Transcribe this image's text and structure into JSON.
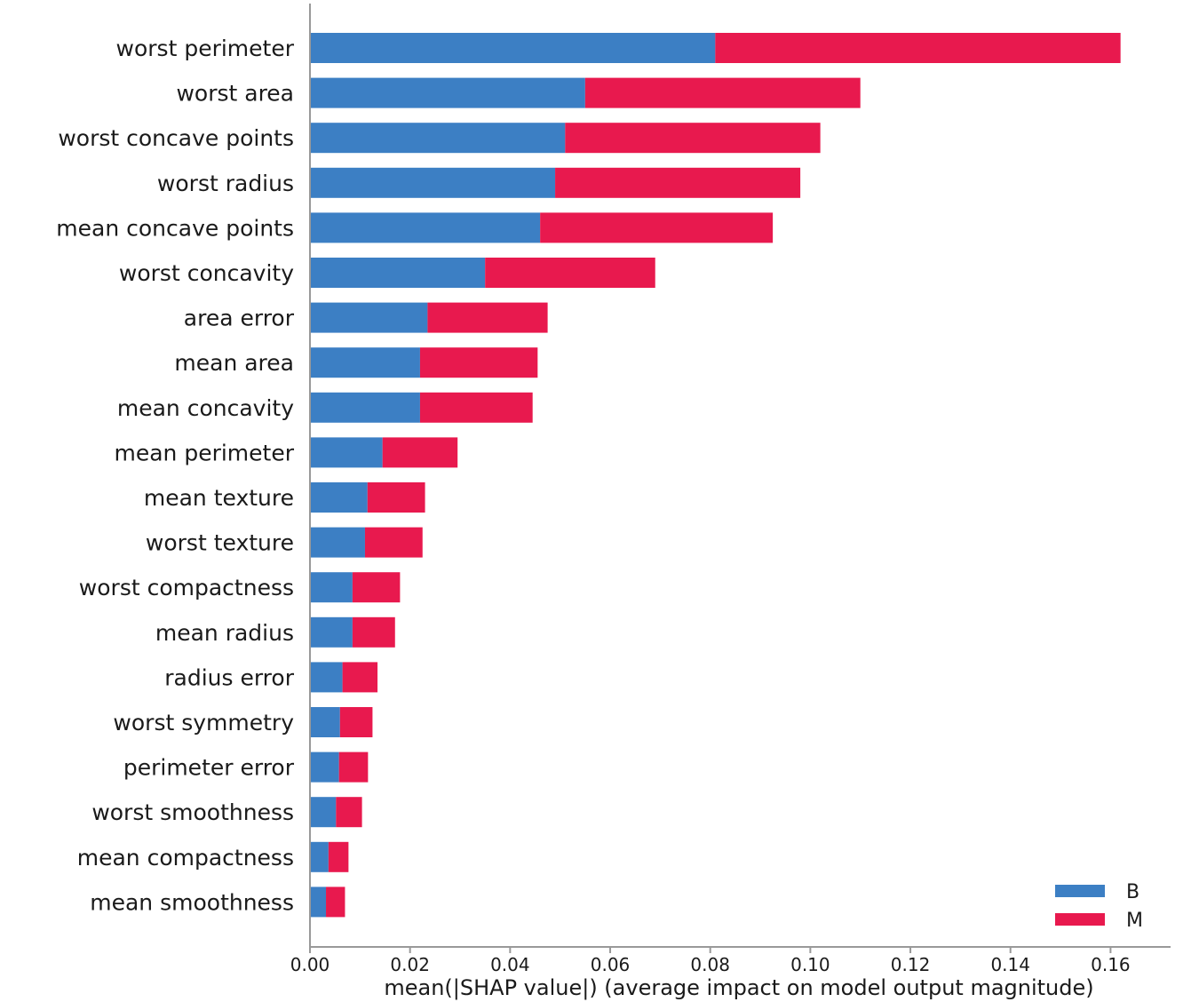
{
  "chart_data": {
    "type": "bar",
    "orientation": "horizontal",
    "stacked": true,
    "categories": [
      "worst perimeter",
      "worst area",
      "worst concave points",
      "worst radius",
      "mean concave points",
      "worst concavity",
      "area error",
      "mean area",
      "mean concavity",
      "mean perimeter",
      "mean texture",
      "worst texture",
      "worst compactness",
      "mean radius",
      "radius error",
      "worst symmetry",
      "perimeter error",
      "worst smoothness",
      "mean compactness",
      "mean smoothness"
    ],
    "series": [
      {
        "name": "B",
        "color": "#3c7fc4",
        "values": [
          0.081,
          0.055,
          0.051,
          0.049,
          0.046,
          0.035,
          0.0235,
          0.022,
          0.022,
          0.0145,
          0.0115,
          0.011,
          0.0085,
          0.0085,
          0.0065,
          0.006,
          0.0058,
          0.0052,
          0.0037,
          0.0032
        ]
      },
      {
        "name": "M",
        "color": "#e8194e",
        "values": [
          0.081,
          0.055,
          0.051,
          0.049,
          0.0465,
          0.034,
          0.024,
          0.0235,
          0.0225,
          0.015,
          0.0115,
          0.0115,
          0.0095,
          0.0085,
          0.007,
          0.0065,
          0.0058,
          0.0052,
          0.004,
          0.0038
        ]
      }
    ],
    "title": "",
    "xlabel": "mean(|SHAP value|) (average impact on model output magnitude)",
    "ylabel": "",
    "xlim": [
      0.0,
      0.172
    ],
    "xticks": [
      0.0,
      0.02,
      0.04,
      0.06,
      0.08,
      0.1,
      0.12,
      0.14,
      0.16
    ],
    "xtick_labels": [
      "0.00",
      "0.02",
      "0.04",
      "0.06",
      "0.08",
      "0.10",
      "0.12",
      "0.14",
      "0.16"
    ],
    "legend": {
      "position": "bottom-right",
      "entries": [
        "B",
        "M"
      ]
    },
    "grid": false
  }
}
